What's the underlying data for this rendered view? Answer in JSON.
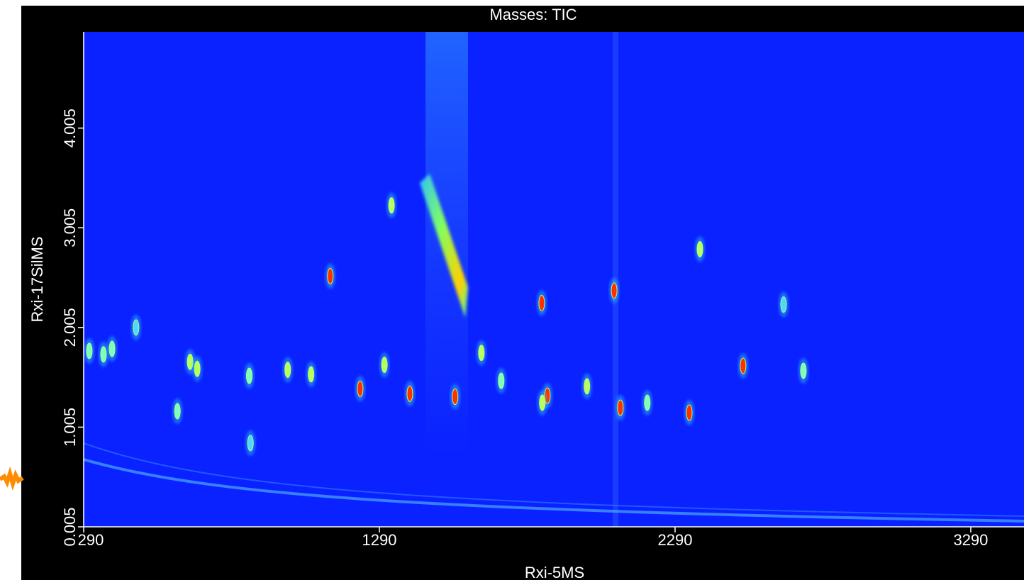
{
  "chart_data": {
    "type": "heatmap",
    "title": "Masses:  TIC",
    "x_label": "Rxi-5MS",
    "y_label": "Rxi-17SilMS",
    "xlim": [
      290,
      3470
    ],
    "xticks": [
      290,
      1290,
      2290,
      3290
    ],
    "ylim": [
      0.005,
      4.97
    ],
    "yticks": [
      0.005,
      1.005,
      2.005,
      3.005,
      4.005
    ],
    "background_color": "#0a22ff",
    "peaks": {
      "x": [
        309,
        357,
        386,
        467,
        607,
        650,
        674,
        854,
        850,
        980,
        1059,
        1124,
        1225,
        1307,
        1331,
        1393,
        1546,
        1635,
        1702,
        1839,
        1858,
        1841,
        1992,
        2084,
        2105,
        2196,
        2338,
        2374,
        2520,
        2724,
        2657
      ],
      "y": [
        1.77,
        1.735,
        1.79,
        2.005,
        1.165,
        1.66,
        1.59,
        0.845,
        1.52,
        1.58,
        1.535,
        2.52,
        1.39,
        1.63,
        3.23,
        1.34,
        1.31,
        1.75,
        1.47,
        2.25,
        1.32,
        1.25,
        1.415,
        2.375,
        1.2,
        1.25,
        1.15,
        2.79,
        1.62,
        1.57,
        2.235
      ],
      "colors": [
        "#7affc0",
        "#7affc0",
        "#7affc0",
        "#4fd8ff",
        "#7affc0",
        "#b8ff60",
        "#b8ff60",
        "#4fd8ff",
        "#7affc0",
        "#b8ff60",
        "#b8ff60",
        "#ff3000",
        "#ff3000",
        "#b8ff60",
        "#b8ff60",
        "#ff3000",
        "#ff3000",
        "#b8ff60",
        "#7affc0",
        "#ff3000",
        "#ff3000",
        "#b8ff60",
        "#b8ff60",
        "#ff3000",
        "#ff3000",
        "#7affc0",
        "#ff3000",
        "#b8ff60",
        "#ff3000",
        "#7affc0",
        "#4fd8ff"
      ]
    }
  }
}
